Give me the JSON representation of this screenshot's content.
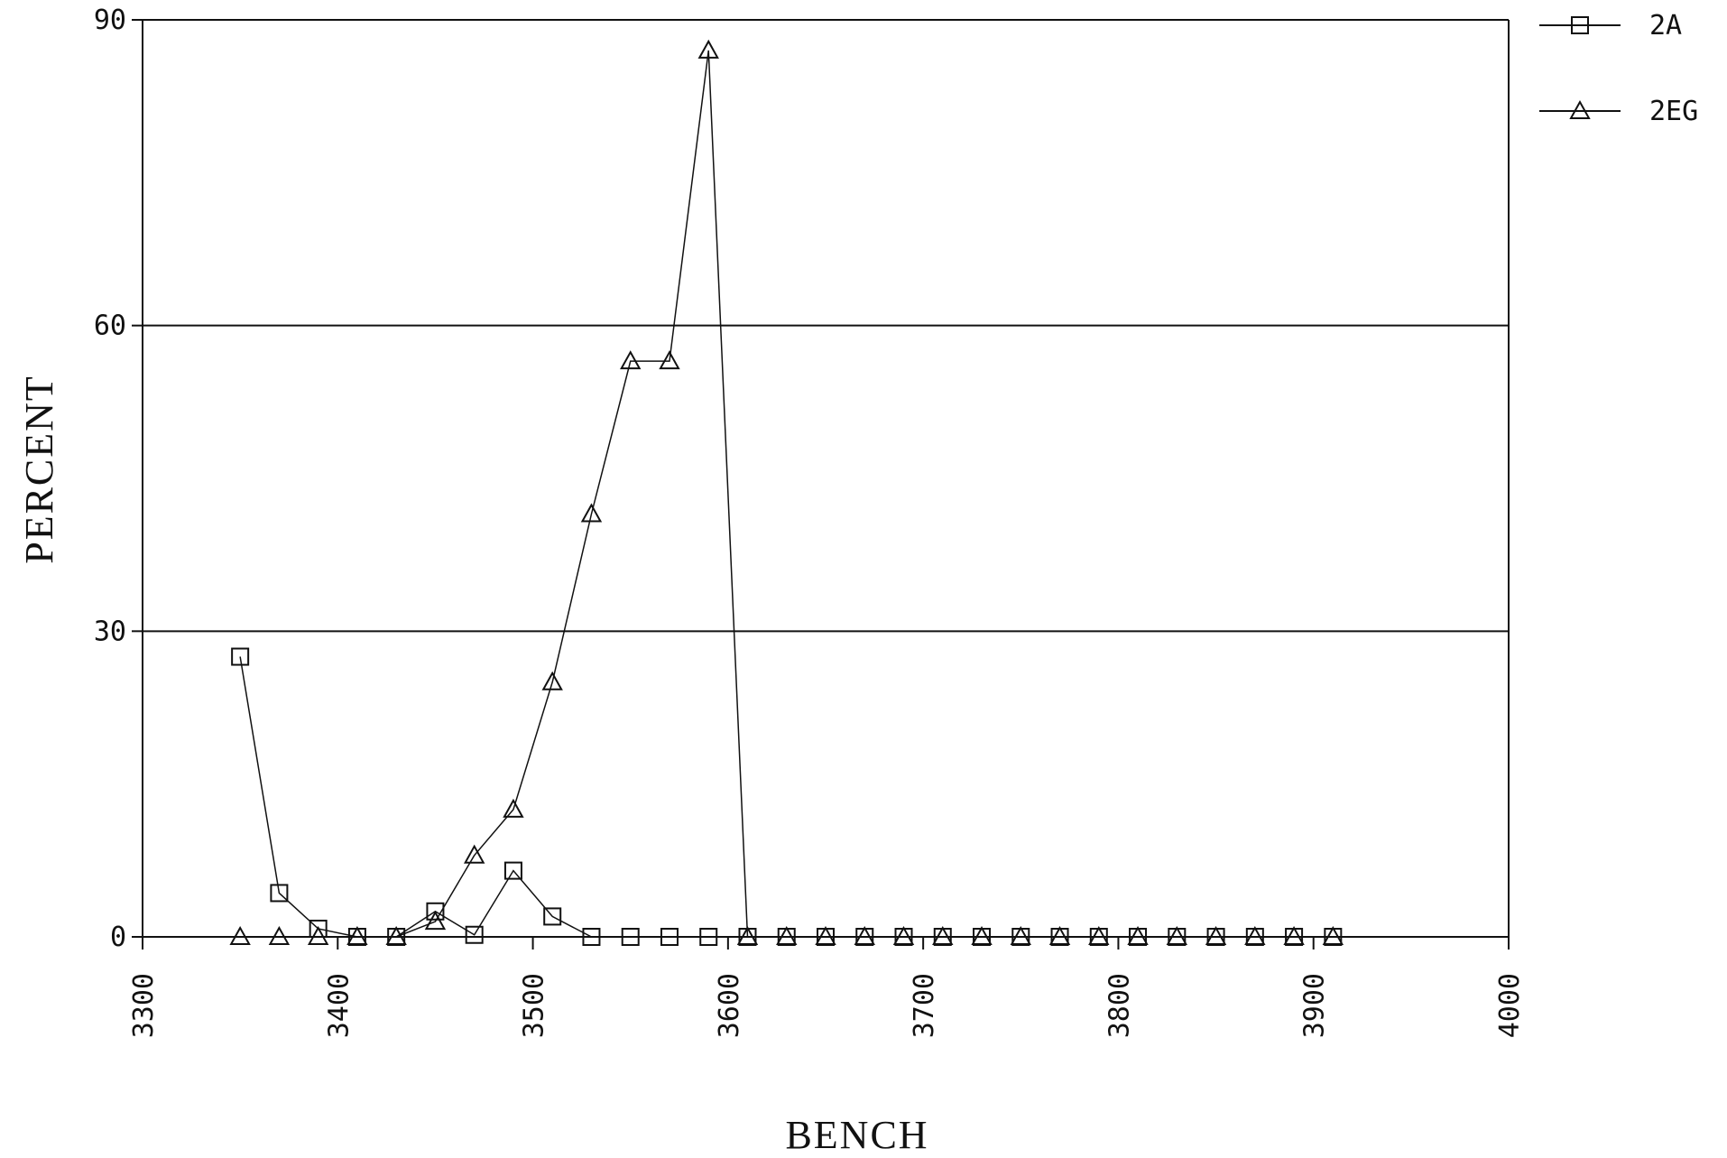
{
  "chart_data": {
    "type": "line",
    "title": "",
    "xlabel": "BENCH",
    "ylabel": "PERCENT",
    "xlim": [
      3300,
      4000
    ],
    "ylim": [
      0,
      90
    ],
    "x_ticks": [
      3300,
      3400,
      3500,
      3600,
      3700,
      3800,
      3900,
      4000
    ],
    "x_tick_labels": [
      "3300",
      "3400",
      "3500",
      "3600",
      "3700",
      "3800",
      "3900",
      "4000"
    ],
    "y_ticks": [
      0,
      30,
      60,
      90
    ],
    "y_tick_labels": [
      "0",
      "30",
      "60",
      "90"
    ],
    "grid": "horizontal",
    "legend": "top-right",
    "x": [
      3350,
      3370,
      3390,
      3410,
      3430,
      3450,
      3470,
      3490,
      3510,
      3530,
      3550,
      3570,
      3590,
      3610,
      3630,
      3650,
      3670,
      3690,
      3710,
      3730,
      3750,
      3770,
      3790,
      3810,
      3830,
      3850,
      3870,
      3890,
      3910
    ],
    "series": [
      {
        "name": "2A",
        "marker": "square",
        "values": [
          27.5,
          4.3,
          0.8,
          0,
          0,
          2.5,
          0.2,
          6.5,
          2.0,
          0,
          0,
          0,
          0,
          0,
          0,
          0,
          0,
          0,
          0,
          0,
          0,
          0,
          0,
          0,
          0,
          0,
          0,
          0,
          0
        ]
      },
      {
        "name": "2EG",
        "marker": "triangle",
        "values": [
          0,
          0,
          0,
          0,
          0,
          1.5,
          8.0,
          12.5,
          25.0,
          41.5,
          56.5,
          56.5,
          87.0,
          0,
          0,
          0,
          0,
          0,
          0,
          0,
          0,
          0,
          0,
          0,
          0,
          0,
          0,
          0,
          0
        ]
      }
    ]
  }
}
